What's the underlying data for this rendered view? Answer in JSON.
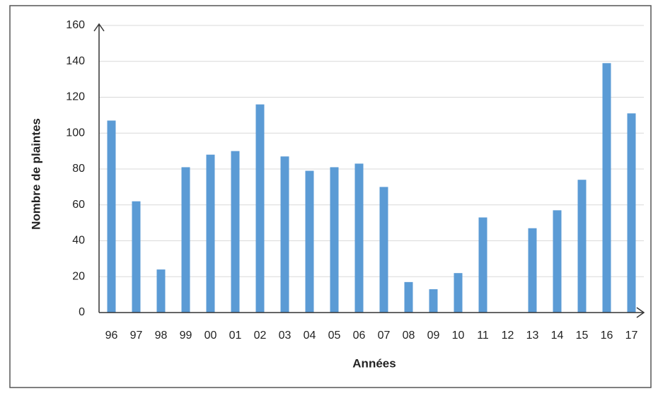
{
  "chart_data": {
    "type": "bar",
    "categories": [
      "96",
      "97",
      "98",
      "99",
      "00",
      "01",
      "02",
      "03",
      "04",
      "05",
      "06",
      "07",
      "08",
      "09",
      "10",
      "11",
      "12",
      "13",
      "14",
      "15",
      "16",
      "17"
    ],
    "values": [
      107,
      62,
      24,
      81,
      88,
      90,
      116,
      87,
      79,
      81,
      83,
      70,
      17,
      13,
      22,
      53,
      null,
      47,
      57,
      74,
      139,
      111
    ],
    "color": "#5b9bd5",
    "x_label": "Années",
    "y_label": "Nombre de plaintes",
    "ylim": [
      0,
      160
    ],
    "yticks": [
      0,
      20,
      40,
      60,
      80,
      100,
      120,
      140,
      160
    ],
    "grid": true
  }
}
